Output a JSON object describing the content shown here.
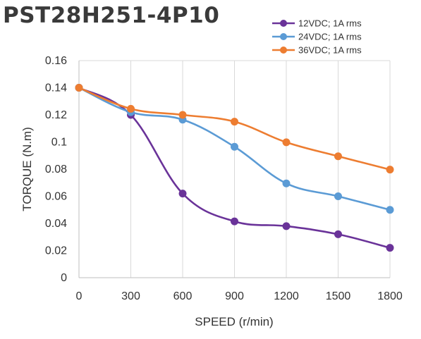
{
  "chart_data": {
    "type": "line",
    "title": "PST28H251-4P10",
    "xlabel": "SPEED (r/min)",
    "ylabel": "TORQUE (N.m)",
    "x": [
      0,
      300,
      600,
      900,
      1200,
      1500,
      1800
    ],
    "x_tick_labels": [
      "0",
      "300",
      "600",
      "900",
      "1200",
      "1500",
      "1800"
    ],
    "xlim": [
      0,
      1800
    ],
    "ylim": [
      0,
      0.16
    ],
    "y_ticks": [
      0,
      0.02,
      0.04,
      0.06,
      0.08,
      0.1,
      0.12,
      0.14,
      0.16
    ],
    "y_tick_labels": [
      "0",
      "0.02",
      "0.04",
      "0.06",
      "0.08",
      "0.1",
      "0.12",
      "0.14",
      "0.16"
    ],
    "grid": "vertical",
    "smooth": true,
    "legend_position": "top-right",
    "series": [
      {
        "name": "12VDC; 1A rms",
        "color": "#6a3399",
        "values": [
          0.14,
          0.12,
          0.062,
          0.0415,
          0.038,
          0.032,
          0.022
        ]
      },
      {
        "name": "24VDC; 1A rms",
        "color": "#5b9bd5",
        "values": [
          0.14,
          0.122,
          0.1165,
          0.0965,
          0.0695,
          0.06,
          0.05
        ]
      },
      {
        "name": "36VDC; 1A rms",
        "color": "#ed7d31",
        "values": [
          0.14,
          0.1245,
          0.12,
          0.115,
          0.0998,
          0.0895,
          0.0797
        ]
      }
    ]
  }
}
